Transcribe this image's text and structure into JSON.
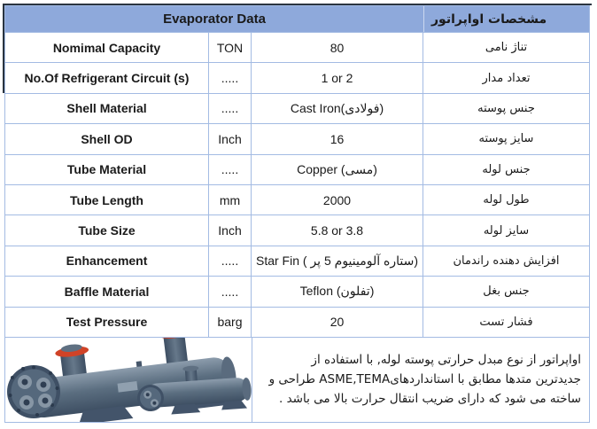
{
  "header": {
    "title_en": "Evaporator Data",
    "title_fa": "مشخصات اواپراتور"
  },
  "rows": [
    {
      "label": "Nomimal Capacity",
      "unit": "TON",
      "value": "80",
      "fa": "تناژ نامی"
    },
    {
      "label": "No.Of Refrigerant Circuit (s)",
      "unit": ".....",
      "value": "1 or 2",
      "fa": "تعداد مدار"
    },
    {
      "label": "Shell Material",
      "unit": ".....",
      "value": "Cast Iron(فولادی)",
      "fa": "جنس پوسته"
    },
    {
      "label": "Shell OD",
      "unit": "Inch",
      "value": "16",
      "fa": "سایز پوسته"
    },
    {
      "label": "Tube Material",
      "unit": ".....",
      "value": "Copper (مسی)",
      "fa": "جنس لوله"
    },
    {
      "label": "Tube Length",
      "unit": "mm",
      "value": "2000",
      "fa": "طول لوله"
    },
    {
      "label": "Tube Size",
      "unit": "Inch",
      "value": "5.8 or 3.8",
      "fa": "سایز لوله"
    },
    {
      "label": "Enhancement",
      "unit": ".....",
      "value": "Star Fin  ( ستاره آلومینیوم 5 پر)",
      "fa": "افزایش دهنده راندمان"
    },
    {
      "label": "Baffle Material",
      "unit": ".....",
      "value": "Teflon (تفلون)",
      "fa": "جنس بغل"
    },
    {
      "label": "Test Pressure",
      "unit": "barg",
      "value": "20",
      "fa": "فشار تست"
    }
  ],
  "footer": {
    "description_fa": "اواپراتور از نوع مبدل حرارتی پوسته لوله, با استفاده از جدیدترین متدها مطابق با استانداردهایASME,TEMA طراحی و ساخته می شود که دارای ضریب انتقال حرارت بالا می باشد .",
    "image_label": "shell-and-tube-evaporator-photo"
  },
  "colors": {
    "header_fill": "#8EA9DB",
    "grid_border": "#A3BBE3",
    "outer_dark_border": "#2A3440",
    "clamp_red": "#D04327",
    "shell_gray": "#5B6E80"
  }
}
